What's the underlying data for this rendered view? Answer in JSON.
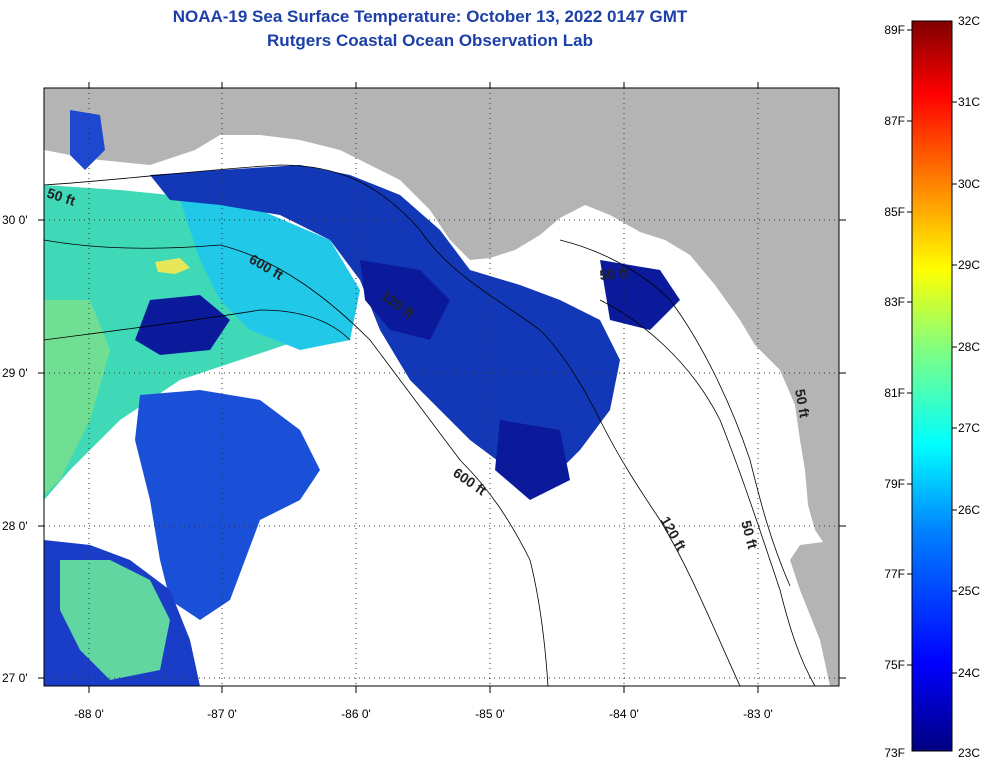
{
  "title": {
    "line1": "NOAA-19 Sea Surface Temperature:  October 13, 2022 0147 GMT",
    "line2": "Rutgers Coastal Ocean Observation Lab"
  },
  "colors": {
    "title": "#1c3fa8",
    "land": "#b4b4b4",
    "cloud": "#ffffff"
  },
  "map": {
    "lon_labels": [
      "-88 0'",
      "-87 0'",
      "-86 0'",
      "-85 0'",
      "-84 0'",
      "-83 0'"
    ],
    "lat_labels": [
      "30 0'",
      "29 0'",
      "28 0'",
      "27 0'"
    ],
    "contours": [
      "50 ft",
      "600 ft",
      "120 ft",
      "50 ft",
      "600 ft",
      "120 ft",
      "50 ft",
      "50 ft"
    ]
  },
  "colorbar": {
    "fahrenheit": [
      "89F",
      "87F",
      "85F",
      "83F",
      "81F",
      "79F",
      "77F",
      "75F",
      "73F"
    ],
    "celsius": [
      "32C",
      "31C",
      "30C",
      "29C",
      "28C",
      "27C",
      "26C",
      "25C",
      "24C",
      "23C"
    ],
    "gradient": [
      "#000080",
      "#0000ff",
      "#0080ff",
      "#00ffff",
      "#80ff80",
      "#ffff00",
      "#ff8000",
      "#ff0000",
      "#800000"
    ]
  }
}
